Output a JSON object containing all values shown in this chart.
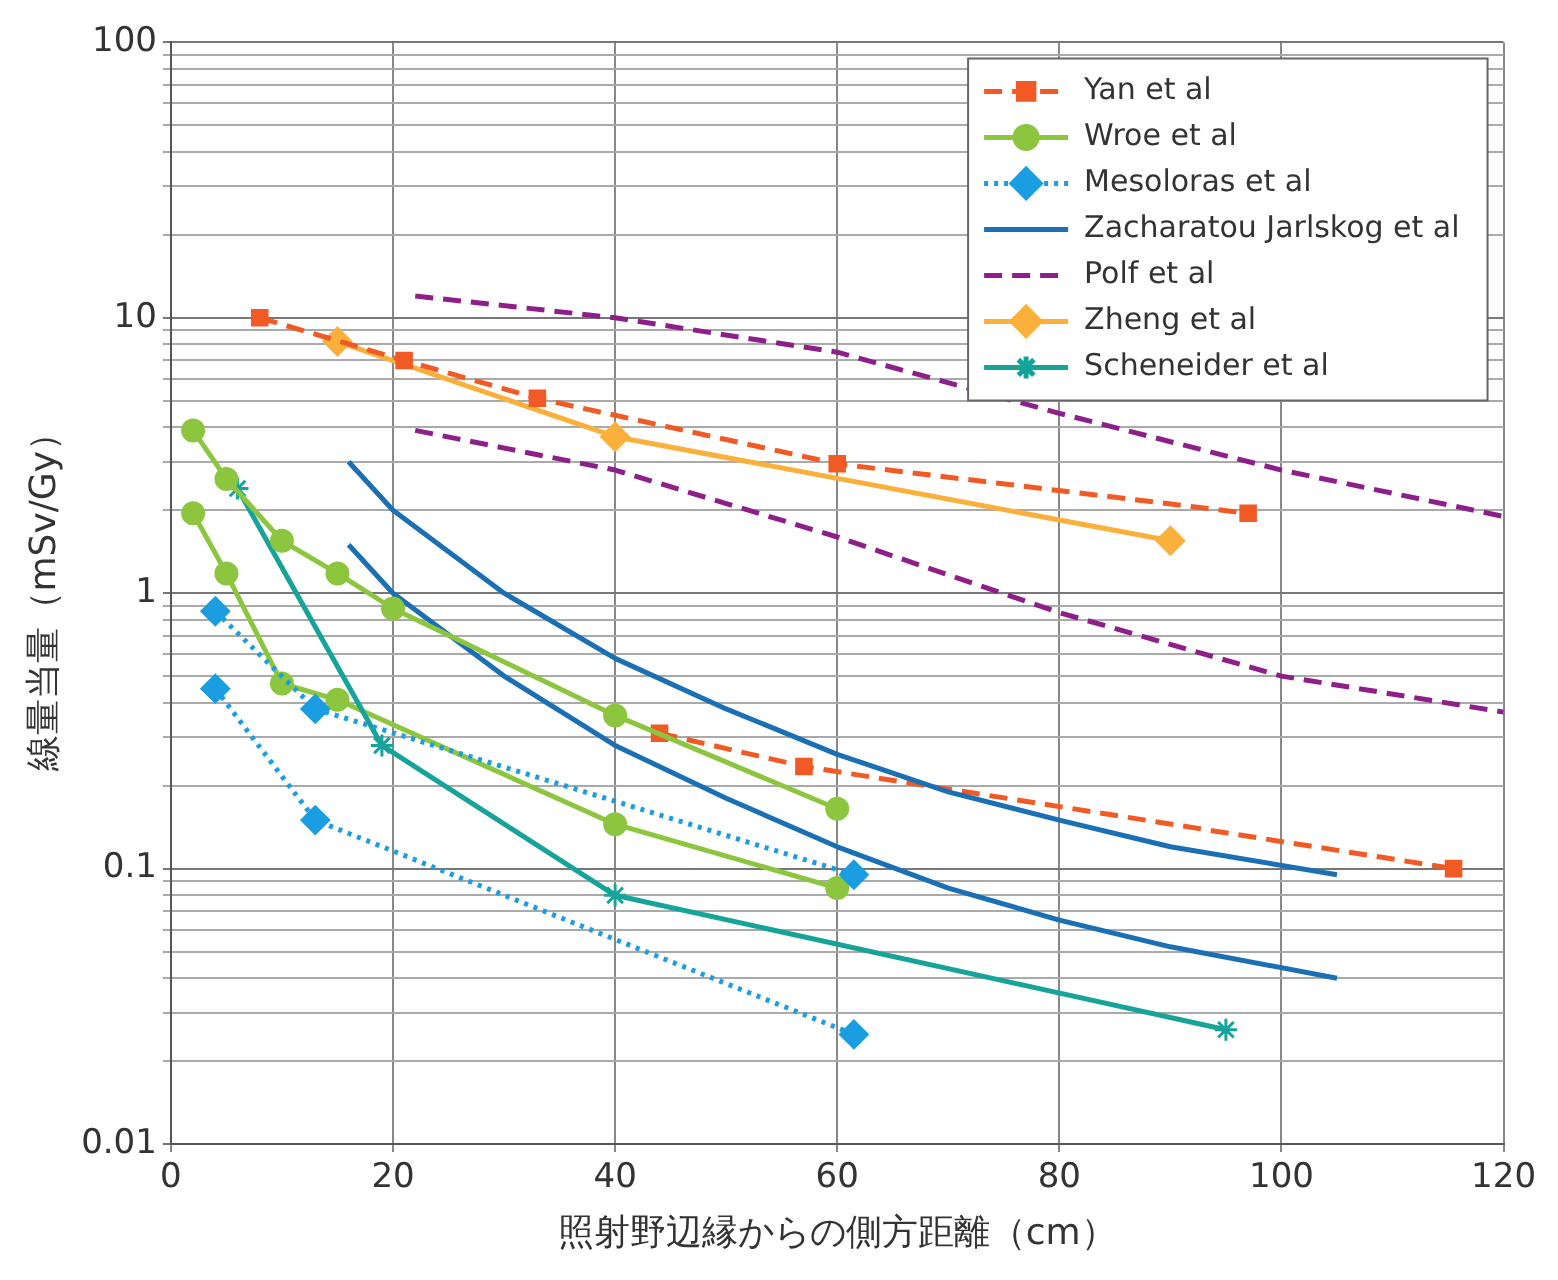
{
  "chart_data": {
    "type": "line",
    "xlabel": "照射野辺縁からの側方距離（cm）",
    "ylabel": "線量当量（mSv/Gy）",
    "log": "y",
    "xlim": [
      0,
      120
    ],
    "xticks": [
      0,
      20,
      40,
      60,
      80,
      100,
      120
    ],
    "ylim": [
      0.01,
      100
    ],
    "yticks": [
      0.01,
      {
        "value": 0.02,
        "label": null
      },
      {
        "value": 0.03,
        "label": null
      },
      {
        "value": 0.04,
        "label": null
      },
      {
        "value": 0.05,
        "label": null
      },
      {
        "value": 0.06,
        "label": null
      },
      {
        "value": 0.07,
        "label": null
      },
      {
        "value": 0.08,
        "label": null
      },
      {
        "value": 0.09,
        "label": null
      },
      0.1,
      {
        "value": 0.2,
        "label": null
      },
      {
        "value": 0.3,
        "label": null
      },
      {
        "value": 0.4,
        "label": null
      },
      {
        "value": 0.5,
        "label": null
      },
      {
        "value": 0.6,
        "label": null
      },
      {
        "value": 0.7,
        "label": null
      },
      {
        "value": 0.8,
        "label": null
      },
      {
        "value": 0.9,
        "label": null
      },
      1,
      {
        "value": 2,
        "label": null
      },
      {
        "value": 3,
        "label": null
      },
      {
        "value": 4,
        "label": null
      },
      {
        "value": 5,
        "label": null
      },
      {
        "value": 6,
        "label": null
      },
      {
        "value": 7,
        "label": null
      },
      {
        "value": 8,
        "label": null
      },
      {
        "value": 9,
        "label": null
      },
      10,
      {
        "value": 20,
        "label": null
      },
      {
        "value": 30,
        "label": null
      },
      {
        "value": 40,
        "label": null
      },
      {
        "value": 50,
        "label": null
      },
      {
        "value": 60,
        "label": null
      },
      {
        "value": 70,
        "label": null
      },
      {
        "value": 80,
        "label": null
      },
      {
        "value": 90,
        "label": null
      },
      100
    ],
    "grid": true,
    "legend": "top right",
    "series": [
      {
        "name": "Yan et al",
        "color": "#f15a24",
        "marker": "square",
        "line_style": "dashed",
        "x": [
          8,
          21,
          33,
          60,
          97
        ],
        "values": [
          10,
          7,
          5.1,
          2.95,
          1.95
        ]
      },
      {
        "name": "Wroe et al",
        "color": "#8cc63f",
        "marker": "circle",
        "line_style": "solid",
        "x": [
          2,
          5,
          10,
          15,
          20,
          40,
          60
        ],
        "values": [
          3.9,
          2.6,
          1.55,
          1.18,
          0.88,
          0.36,
          0.165
        ]
      },
      {
        "name": "Mesoloras et al",
        "color": "#1b9de2",
        "marker": "diamond",
        "line_style": "dotted",
        "x": [
          4,
          13,
          61.5
        ],
        "values": [
          0.86,
          0.38,
          0.095
        ]
      },
      {
        "name": "Zacharatou Jarlskog et al",
        "color": "#1b6fb5",
        "marker": "none",
        "line_style": "solid",
        "x": [
          16,
          20,
          30,
          40,
          50,
          60,
          70,
          80,
          90,
          105
        ],
        "values": [
          3.0,
          2.0,
          1.0,
          0.58,
          0.38,
          0.26,
          0.19,
          0.15,
          0.12,
          0.095
        ]
      },
      {
        "name": "Polf et al",
        "color": "#8e1f8a",
        "marker": "none",
        "line_style": "dashed",
        "x": [
          22,
          40,
          60,
          80,
          100,
          120
        ],
        "values": [
          12,
          10,
          7.5,
          4.5,
          2.8,
          1.9
        ]
      },
      {
        "name": "Zheng et al",
        "color": "#fbb03b",
        "marker": "diamond",
        "line_style": "solid",
        "x": [
          15,
          40,
          90
        ],
        "values": [
          8.2,
          3.7,
          1.55
        ]
      },
      {
        "name": "Scheneider et al",
        "color": "#15a39a",
        "marker": "cross",
        "line_style": "solid",
        "x": [
          6,
          19,
          40,
          95
        ],
        "values": [
          2.4,
          0.28,
          0.08,
          0.026
        ]
      },
      {
        "color": "#f15a24",
        "marker": "square",
        "line_style": "dashed",
        "x": [
          44,
          57,
          115.5
        ],
        "values": [
          0.31,
          0.235,
          0.1
        ]
      },
      {
        "color": "#8cc63f",
        "marker": "circle",
        "line_style": "solid",
        "x": [
          2,
          5,
          10,
          15,
          40,
          60
        ],
        "values": [
          1.95,
          1.18,
          0.47,
          0.41,
          0.145,
          0.085
        ]
      },
      {
        "color": "#1b9de2",
        "marker": "diamond",
        "line_style": "dotted",
        "x": [
          4,
          13,
          61.5
        ],
        "values": [
          0.45,
          0.15,
          0.025
        ]
      },
      {
        "color": "#1b6fb5",
        "marker": "none",
        "line_style": "solid",
        "x": [
          16,
          20,
          30,
          40,
          50,
          60,
          70,
          80,
          90,
          105
        ],
        "values": [
          1.5,
          1.0,
          0.5,
          0.28,
          0.18,
          0.12,
          0.085,
          0.065,
          0.052,
          0.04
        ]
      },
      {
        "color": "#8e1f8a",
        "marker": "none",
        "line_style": "dashed",
        "x": [
          22,
          40,
          60,
          80,
          100,
          120
        ],
        "values": [
          3.9,
          2.8,
          1.6,
          0.85,
          0.5,
          0.37
        ]
      }
    ]
  }
}
